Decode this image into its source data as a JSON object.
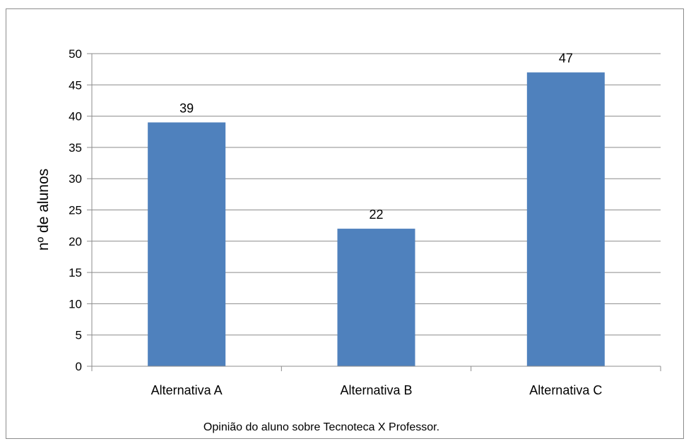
{
  "chart_data": {
    "type": "bar",
    "categories": [
      "Alternativa A",
      "Alternativa B",
      "Alternativa C"
    ],
    "series": [
      {
        "values": [
          39,
          22,
          47
        ],
        "color": "#4F81BD"
      }
    ],
    "data_labels": [
      "39",
      "22",
      "47"
    ],
    "ylabel": "nº de alunos",
    "xlabel": "Opinião do aluno sobre Tecnoteca X Professor.",
    "ylim": [
      0,
      50
    ],
    "yticks": [
      0,
      5,
      10,
      15,
      20,
      25,
      30,
      35,
      40,
      45,
      50
    ],
    "grid": true,
    "legend": "none"
  }
}
